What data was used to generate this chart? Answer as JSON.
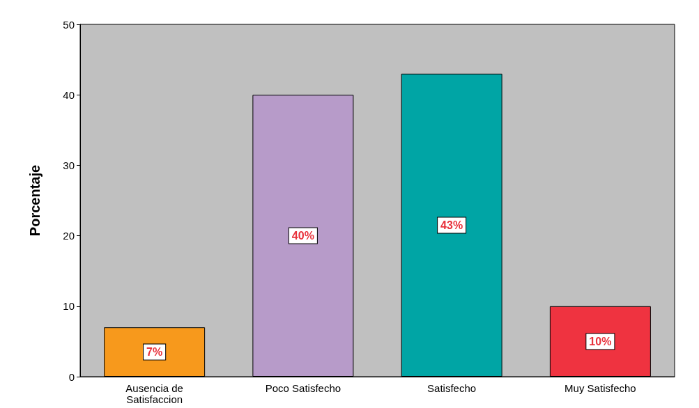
{
  "chart_data": {
    "type": "bar",
    "ylabel": "Porcentaje",
    "categories": [
      "Ausencia de\nSatisfaccion",
      "Poco Satisfecho",
      "Satisfecho",
      "Muy Satisfecho"
    ],
    "values": [
      7,
      40,
      43,
      10
    ],
    "colors": [
      "#f7991c",
      "#b79bc9",
      "#00a5a5",
      "#ef3340"
    ],
    "value_labels": [
      "7%",
      "40%",
      "43%",
      "10%"
    ],
    "ylim": [
      0,
      50
    ],
    "yticks": [
      0,
      10,
      20,
      30,
      40,
      50
    ],
    "grid": false
  }
}
